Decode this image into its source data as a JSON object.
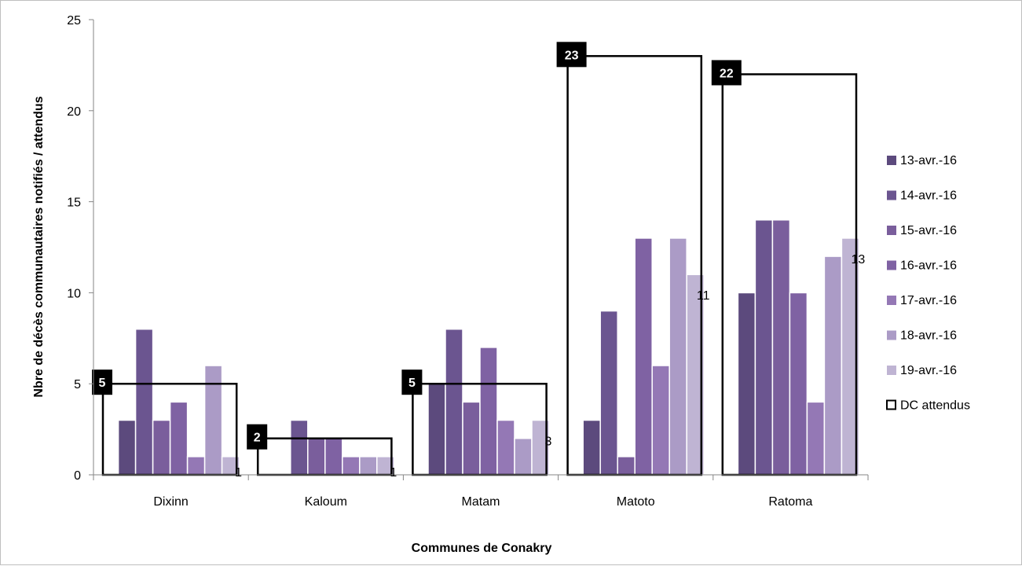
{
  "chart_data": {
    "type": "bar",
    "title": "",
    "xlabel": "Communes de Conakry",
    "ylabel": "Nbre de décès communautaires notifiés / attendus",
    "ylim": [
      0,
      25
    ],
    "yticks": [
      "0",
      "5",
      "10",
      "15",
      "20",
      "25"
    ],
    "categories": [
      "Dixinn",
      "Kaloum",
      "Matam",
      "Matoto",
      "Ratoma"
    ],
    "series": [
      {
        "name": "13-avr.-16",
        "color": "#5c4a7d",
        "values": [
          3,
          0,
          5,
          3,
          10
        ]
      },
      {
        "name": "14-avr.-16",
        "color": "#6b5590",
        "values": [
          8,
          3,
          8,
          9,
          14
        ]
      },
      {
        "name": "15-avr.-16",
        "color": "#7a5e9c",
        "values": [
          3,
          2,
          4,
          1,
          14
        ]
      },
      {
        "name": "16-avr.-16",
        "color": "#7f62a3",
        "values": [
          4,
          2,
          7,
          13,
          10
        ]
      },
      {
        "name": "17-avr.-16",
        "color": "#9478b5",
        "values": [
          1,
          1,
          3,
          6,
          4
        ]
      },
      {
        "name": "18-avr.-16",
        "color": "#ab9bc6",
        "values": [
          6,
          1,
          2,
          13,
          12
        ]
      },
      {
        "name": "19-avr.-16",
        "color": "#bfb4d3",
        "values": [
          1,
          1,
          3,
          11,
          13
        ]
      }
    ],
    "data_labels": [
      "1",
      "1",
      "3",
      "11",
      "13"
    ],
    "expected": {
      "name": "DC attendus",
      "values": [
        5,
        2,
        5,
        23,
        22
      ],
      "labels": [
        "5",
        "2",
        "5",
        "23",
        "22"
      ]
    },
    "legend_position": "right",
    "grid": false
  }
}
